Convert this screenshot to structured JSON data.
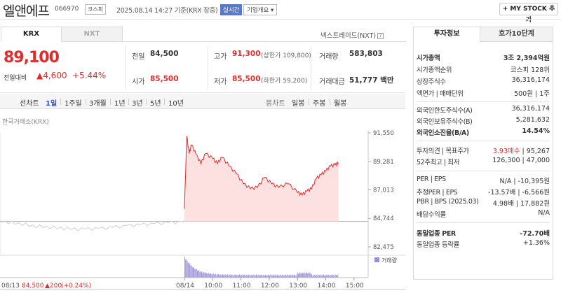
{
  "header": {
    "title": "엘앤에프",
    "code": "066970",
    "market": "코스피",
    "datetime": "2025.08.14 14:27 기준(KRX 장중)",
    "realtime": "실시간",
    "company_overview": "기업개요 ▾",
    "my_stock": "+ MY STOCK 추가"
  },
  "tabs": {
    "krx": "KRX",
    "nxt": "NXT",
    "nextrade": "넥스트레이드(NXT)"
  },
  "price": {
    "current": "89,100",
    "change_label": "전일대비",
    "change": "▲4,600",
    "change_pct": "+5.44%"
  },
  "quote": {
    "prev_close_label": "전일",
    "prev_close": "84,500",
    "high_label": "고가",
    "high": "91,300",
    "upper_limit": "(상한가 109,800)",
    "volume_label": "거래량",
    "volume": "583,803",
    "open_label": "시가",
    "open": "85,500",
    "low_label": "저가",
    "low": "85,500",
    "lower_limit": "(하한가 59,200)",
    "value_label": "거래대금",
    "value": "51,777 백만"
  },
  "periods": {
    "line_chart": "선차트",
    "items": [
      "1일",
      "1주일",
      "3개월",
      "1년",
      "3년",
      "5년",
      "10년"
    ],
    "candle": "봉차트",
    "candle_items": [
      "일봉",
      "주봉",
      "월봉"
    ]
  },
  "chart_data": {
    "type": "area",
    "source": "한국거래소(KRX)",
    "y_ticks": [
      "91,550",
      "89,281",
      "87,013",
      "84,744",
      "82,475"
    ],
    "ylim": [
      82475,
      91550
    ],
    "prev_close": 84500,
    "x_ticks": [
      "08/14",
      "10:00",
      "11:00",
      "12:00",
      "13:00",
      "14:00",
      "15:00"
    ],
    "volume_label": "거래량",
    "prev_day_info": {
      "date": "08/13",
      "price": "84,500",
      "change": "▲200",
      "pct": "(+0.24%)"
    },
    "prev_day_series": [
      {
        "t": "09:00",
        "y": 84420
      },
      {
        "t": "09:30",
        "y": 84270
      },
      {
        "t": "10:00",
        "y": 84100
      },
      {
        "t": "10:30",
        "y": 84000
      },
      {
        "t": "11:00",
        "y": 83920
      },
      {
        "t": "11:30",
        "y": 83860
      },
      {
        "t": "12:00",
        "y": 83880
      },
      {
        "t": "12:30",
        "y": 83950
      },
      {
        "t": "13:00",
        "y": 84050
      },
      {
        "t": "13:30",
        "y": 84180
      },
      {
        "t": "14:00",
        "y": 84250
      },
      {
        "t": "14:30",
        "y": 84330
      },
      {
        "t": "15:00",
        "y": 84400
      },
      {
        "t": "15:30",
        "y": 84500
      }
    ],
    "today_series": [
      {
        "t": "09:00",
        "y": 85500
      },
      {
        "t": "09:05",
        "y": 91300
      },
      {
        "t": "09:10",
        "y": 89900
      },
      {
        "t": "09:15",
        "y": 90600
      },
      {
        "t": "09:25",
        "y": 89800
      },
      {
        "t": "09:35",
        "y": 89100
      },
      {
        "t": "09:45",
        "y": 89900
      },
      {
        "t": "10:00",
        "y": 89500
      },
      {
        "t": "10:10",
        "y": 89100
      },
      {
        "t": "10:20",
        "y": 89600
      },
      {
        "t": "10:35",
        "y": 88900
      },
      {
        "t": "10:50",
        "y": 88300
      },
      {
        "t": "11:05",
        "y": 87500
      },
      {
        "t": "11:20",
        "y": 87100
      },
      {
        "t": "11:35",
        "y": 87200
      },
      {
        "t": "11:50",
        "y": 88000
      },
      {
        "t": "12:05",
        "y": 87500
      },
      {
        "t": "12:20",
        "y": 87200
      },
      {
        "t": "12:40",
        "y": 87500
      },
      {
        "t": "13:00",
        "y": 86800
      },
      {
        "t": "13:10",
        "y": 86600
      },
      {
        "t": "13:20",
        "y": 86900
      },
      {
        "t": "13:30",
        "y": 87100
      },
      {
        "t": "13:40",
        "y": 87900
      },
      {
        "t": "13:50",
        "y": 88200
      },
      {
        "t": "14:00",
        "y": 88500
      },
      {
        "t": "14:10",
        "y": 88900
      },
      {
        "t": "14:20",
        "y": 89000
      },
      {
        "t": "14:27",
        "y": 89100
      }
    ]
  },
  "invest_info": {
    "tabs": [
      "투자정보",
      "호가10단계"
    ],
    "rows": [
      {
        "label": "시가총액",
        "value": "3조 2,394억원"
      },
      {
        "label": "시가총액순위",
        "value": "코스피 128위"
      },
      {
        "label": "상장주식수",
        "value": "36,316,174"
      },
      {
        "label": "액면가 | 매매단위",
        "value": "500원 | 1주"
      },
      {
        "label": "외국인한도주식수(A)",
        "value": "36,316,174"
      },
      {
        "label": "외국인보유주식수(B)",
        "value": "5,281,632"
      },
      {
        "label": "외국인소진율(B/A)",
        "value": "14.54%"
      },
      {
        "label": "투자의견 | 목표주가",
        "value_a": "3.93매수",
        "value_b": "95,267"
      },
      {
        "label": "52주최고 | 최저",
        "value": "126,300 | 47,000"
      },
      {
        "label": "PER | EPS",
        "value": "N/A | -10,395원"
      },
      {
        "label": "추정PER | EPS",
        "value": "-13.57배 | -6,566원"
      },
      {
        "label": "PBR | BPS (2025.03)",
        "value": "4.98배 | 17,882원"
      },
      {
        "label": "배당수익률",
        "value": "N/A"
      },
      {
        "label": "동일업종 PER",
        "value": "-72.70배"
      },
      {
        "label": "동일업종 등락률",
        "value": "+1.36%"
      }
    ]
  },
  "colors": {
    "up": "#e22c2c",
    "accent": "#2b55c8",
    "area": "#fde0e0"
  }
}
